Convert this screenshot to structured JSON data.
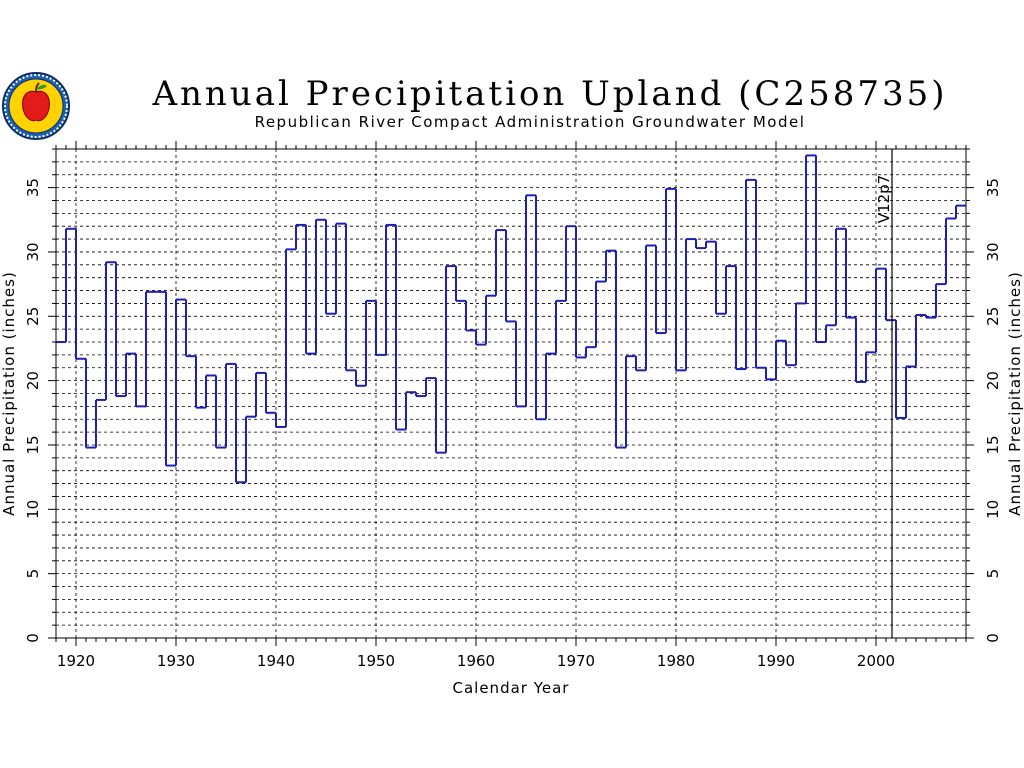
{
  "chart_data": {
    "type": "line",
    "title": "Annual Precipitation Upland (C258735)",
    "subtitle": "Republican River Compact Administration Groundwater Model",
    "xlabel": "Calendar Year",
    "ylabel": "Annual Precipitation (inches)",
    "ylabel_right": "Annual Precipitation (inches)",
    "xlim": [
      1918,
      2009
    ],
    "ylim": [
      0,
      38
    ],
    "x_ticks": [
      1920,
      1930,
      1940,
      1950,
      1960,
      1970,
      1980,
      1990,
      2000
    ],
    "y_ticks": [
      0,
      5,
      10,
      15,
      20,
      25,
      30,
      35
    ],
    "grid": true,
    "marker_line": {
      "x": 2001,
      "label": "V12p7"
    },
    "series": [
      {
        "style": "step",
        "color": "#1f1fb4",
        "x": [
          1918,
          1919,
          1920,
          1921,
          1922,
          1923,
          1924,
          1925,
          1926,
          1927,
          1928,
          1929,
          1930,
          1931,
          1932,
          1933,
          1934,
          1935,
          1936,
          1937,
          1938,
          1939,
          1940,
          1941,
          1942,
          1943,
          1944,
          1945,
          1946,
          1947,
          1948,
          1949,
          1950,
          1951,
          1952,
          1953,
          1954,
          1955,
          1956,
          1957,
          1958,
          1959,
          1960,
          1961,
          1962,
          1963,
          1964,
          1965,
          1966,
          1967,
          1968,
          1969,
          1970,
          1971,
          1972,
          1973,
          1974,
          1975,
          1976,
          1977,
          1978,
          1979,
          1980,
          1981,
          1982,
          1983,
          1984,
          1985,
          1986,
          1987,
          1988,
          1989,
          1990,
          1991,
          1992,
          1993,
          1994,
          1995,
          1996,
          1997,
          1998,
          1999,
          2000,
          2001,
          2002,
          2003,
          2004,
          2005,
          2006,
          2007,
          2008
        ],
        "values": [
          23.0,
          31.8,
          21.7,
          14.8,
          18.5,
          29.2,
          18.8,
          22.1,
          18.0,
          26.9,
          26.9,
          13.4,
          26.3,
          21.9,
          17.9,
          20.4,
          14.8,
          21.3,
          12.1,
          17.2,
          20.6,
          17.5,
          16.4,
          30.2,
          32.1,
          22.1,
          32.5,
          25.2,
          32.2,
          20.8,
          19.6,
          26.2,
          22.0,
          32.1,
          16.2,
          19.1,
          18.8,
          20.2,
          14.4,
          28.9,
          26.2,
          23.9,
          22.8,
          26.6,
          31.7,
          24.6,
          18.0,
          34.4,
          17.0,
          22.1,
          26.2,
          32.0,
          21.8,
          22.6,
          27.7,
          30.1,
          14.8,
          21.9,
          20.8,
          30.5,
          23.7,
          34.9,
          20.8,
          31.0,
          30.3,
          30.8,
          25.2,
          28.9,
          20.9,
          35.6,
          21.0,
          20.1,
          23.1,
          21.2,
          26.0,
          37.5,
          23.0,
          24.3,
          31.8,
          24.9,
          19.9,
          22.2,
          28.7,
          24.7,
          17.1,
          21.1,
          25.1,
          24.9,
          27.5,
          32.6,
          33.6
        ]
      }
    ]
  },
  "logo": {
    "name": "rrca-seal",
    "apple_color": "#e31b1b"
  },
  "colors": {
    "series": "#1f1fb4",
    "grid": "#000000",
    "axis": "#000000"
  }
}
